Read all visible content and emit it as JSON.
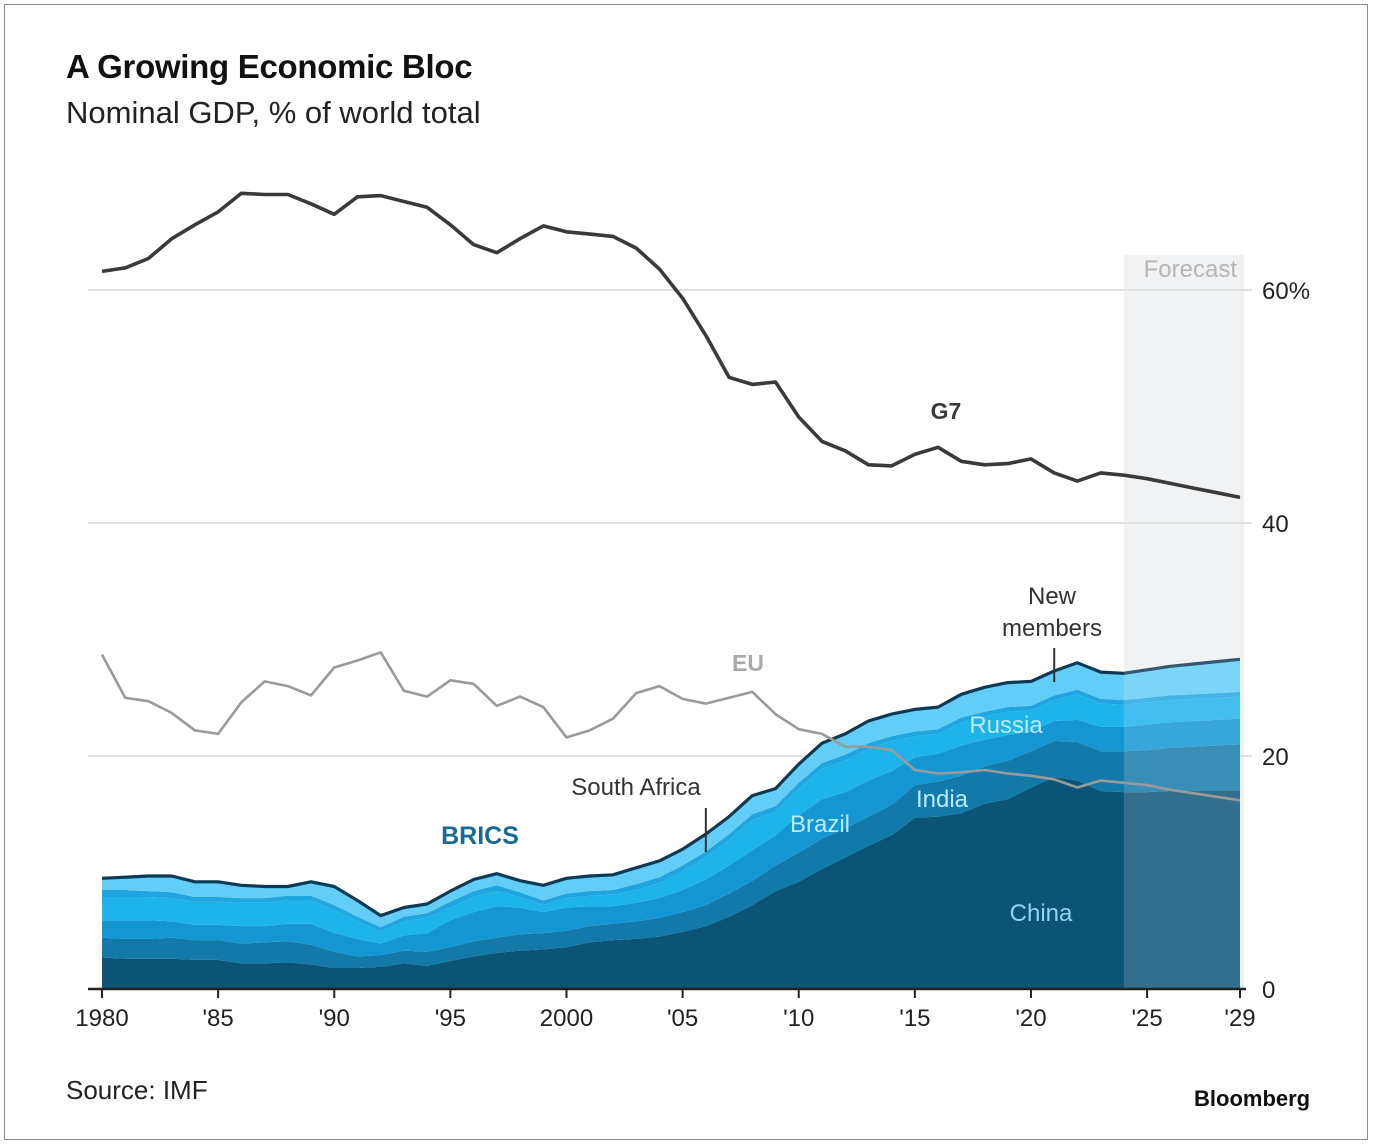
{
  "title": "A Growing Economic Bloc",
  "subtitle": "Nominal GDP, % of world total",
  "source": "Source: IMF",
  "brand": "Bloomberg",
  "colors": {
    "g7": "#3a3a3a",
    "eu": "#9a9a9a",
    "china": "#0b5478",
    "india": "#1279a8",
    "brazil": "#1496d2",
    "russia": "#1fb3ec",
    "south_africa": "#1fa6e0",
    "new_members": "#62cdf7",
    "brics_outline": "#0b3a56",
    "brics_label": "#1a6a96",
    "forecast_shade": "#eef0f2",
    "gridline": "#d6d6d6"
  },
  "chart_data": {
    "type": "area",
    "title": "A Growing Economic Bloc",
    "subtitle": "Nominal GDP, % of world total",
    "x": [
      1980,
      1981,
      1982,
      1983,
      1984,
      1985,
      1986,
      1987,
      1988,
      1989,
      1990,
      1991,
      1992,
      1993,
      1994,
      1995,
      1996,
      1997,
      1998,
      1999,
      2000,
      2001,
      2002,
      2003,
      2004,
      2005,
      2006,
      2007,
      2008,
      2009,
      2010,
      2011,
      2012,
      2013,
      2014,
      2015,
      2016,
      2017,
      2018,
      2019,
      2020,
      2021,
      2022,
      2023,
      2024,
      2025,
      2026,
      2027,
      2028,
      2029
    ],
    "x_ticks": [
      1980,
      1985,
      1990,
      1995,
      2000,
      2005,
      2010,
      2015,
      2020,
      2025,
      2029
    ],
    "x_tick_labels": [
      "1980",
      "'85",
      "'90",
      "'95",
      "2000",
      "'05",
      "'10",
      "'15",
      "'20",
      "'25",
      "'29"
    ],
    "ylim": [
      0,
      65
    ],
    "y_ticks": [
      0,
      20,
      40,
      60
    ],
    "y_tick_labels": [
      "0",
      "20",
      "40",
      "60%"
    ],
    "forecast_start": 2024,
    "forecast_label": "Forecast",
    "lines": [
      {
        "name": "G7",
        "label": "G7",
        "values": [
          61.6,
          61.9,
          62.7,
          64.4,
          65.6,
          66.7,
          68.3,
          68.2,
          68.2,
          67.4,
          66.5,
          68.0,
          68.1,
          67.6,
          67.1,
          65.6,
          63.9,
          63.2,
          64.4,
          65.5,
          65.0,
          64.8,
          64.6,
          63.6,
          61.8,
          59.3,
          56.1,
          52.5,
          51.9,
          52.1,
          49.1,
          47.0,
          46.2,
          45.0,
          44.9,
          45.9,
          46.5,
          45.3,
          45.0,
          45.1,
          45.5,
          44.3,
          43.6,
          44.3,
          44.1,
          43.8,
          43.4,
          43.0,
          42.6,
          42.2
        ]
      },
      {
        "name": "EU",
        "label": "EU",
        "values": [
          28.7,
          25.0,
          24.7,
          23.7,
          22.2,
          21.9,
          24.6,
          26.4,
          26.0,
          25.2,
          27.6,
          28.2,
          28.9,
          25.6,
          25.1,
          26.5,
          26.2,
          24.3,
          25.1,
          24.2,
          21.6,
          22.2,
          23.2,
          25.4,
          26.0,
          24.9,
          24.5,
          25.0,
          25.5,
          23.6,
          22.3,
          21.9,
          20.8,
          20.8,
          20.5,
          18.8,
          18.5,
          18.6,
          18.8,
          18.5,
          18.3,
          18.0,
          17.3,
          17.9,
          17.7,
          17.5,
          17.1,
          16.8,
          16.5,
          16.2
        ]
      }
    ],
    "stacked_series": [
      {
        "name": "China",
        "label": "China",
        "values": [
          2.7,
          2.6,
          2.6,
          2.6,
          2.5,
          2.5,
          2.2,
          2.2,
          2.3,
          2.1,
          1.8,
          1.8,
          1.9,
          2.2,
          2.0,
          2.4,
          2.8,
          3.1,
          3.3,
          3.4,
          3.6,
          4.0,
          4.2,
          4.3,
          4.5,
          4.9,
          5.4,
          6.2,
          7.2,
          8.4,
          9.2,
          10.3,
          11.3,
          12.3,
          13.2,
          14.7,
          14.8,
          15.1,
          15.9,
          16.3,
          17.3,
          18.2,
          17.9,
          17.0,
          16.9,
          16.9,
          17.0,
          17.0,
          17.0,
          17.0
        ]
      },
      {
        "name": "India",
        "label": "India",
        "values": [
          1.7,
          1.7,
          1.7,
          1.8,
          1.7,
          1.7,
          1.7,
          1.8,
          1.8,
          1.7,
          1.4,
          1.0,
          1.0,
          1.1,
          1.2,
          1.2,
          1.3,
          1.3,
          1.4,
          1.4,
          1.4,
          1.4,
          1.4,
          1.5,
          1.6,
          1.7,
          1.8,
          2.0,
          2.1,
          2.2,
          2.5,
          2.6,
          2.5,
          2.5,
          2.6,
          2.8,
          3.0,
          3.2,
          3.2,
          3.3,
          3.1,
          3.1,
          3.3,
          3.4,
          3.5,
          3.6,
          3.7,
          3.8,
          3.9,
          4.0
        ]
      },
      {
        "name": "Brazil",
        "label": "Brazil",
        "values": [
          1.5,
          1.6,
          1.6,
          1.4,
          1.3,
          1.3,
          1.5,
          1.4,
          1.5,
          1.8,
          1.6,
          1.5,
          1.0,
          1.3,
          1.6,
          2.3,
          2.5,
          2.7,
          2.3,
          1.8,
          2.0,
          1.7,
          1.5,
          1.6,
          1.7,
          1.9,
          2.2,
          2.4,
          2.6,
          2.6,
          3.2,
          3.4,
          3.1,
          3.1,
          2.9,
          2.4,
          2.4,
          2.6,
          2.3,
          2.2,
          1.7,
          1.7,
          1.9,
          2.1,
          2.1,
          2.2,
          2.2,
          2.2,
          2.2,
          2.2
        ]
      },
      {
        "name": "Russia",
        "label": "Russia",
        "values": [
          2.0,
          2.0,
          2.0,
          2.0,
          2.0,
          2.0,
          2.0,
          2.0,
          2.0,
          2.0,
          2.0,
          1.5,
          1.0,
          1.2,
          1.3,
          1.1,
          1.3,
          1.3,
          0.9,
          0.6,
          0.8,
          0.9,
          1.0,
          1.1,
          1.3,
          1.6,
          1.9,
          2.2,
          2.6,
          2.0,
          2.3,
          2.6,
          2.7,
          2.7,
          2.6,
          1.8,
          1.7,
          2.0,
          2.0,
          2.0,
          1.8,
          1.8,
          2.2,
          2.0,
          1.9,
          1.9,
          1.9,
          1.9,
          1.9,
          1.9
        ]
      },
      {
        "name": "South Africa",
        "label": "South Africa",
        "values": [
          0.6,
          0.6,
          0.5,
          0.5,
          0.4,
          0.4,
          0.4,
          0.4,
          0.4,
          0.4,
          0.4,
          0.4,
          0.4,
          0.4,
          0.4,
          0.5,
          0.5,
          0.5,
          0.4,
          0.4,
          0.4,
          0.4,
          0.4,
          0.5,
          0.5,
          0.5,
          0.5,
          0.5,
          0.5,
          0.5,
          0.5,
          0.5,
          0.5,
          0.5,
          0.4,
          0.4,
          0.4,
          0.4,
          0.4,
          0.4,
          0.4,
          0.4,
          0.4,
          0.4,
          0.4,
          0.4,
          0.4,
          0.4,
          0.4,
          0.4
        ]
      },
      {
        "name": "New members",
        "values": [
          1.0,
          1.1,
          1.3,
          1.4,
          1.3,
          1.3,
          1.1,
          1.0,
          0.8,
          1.2,
          1.6,
          1.4,
          1.0,
          0.8,
          0.8,
          0.9,
          1.0,
          1.0,
          1.0,
          1.3,
          1.3,
          1.3,
          1.3,
          1.4,
          1.4,
          1.4,
          1.5,
          1.5,
          1.6,
          1.5,
          1.6,
          1.7,
          1.8,
          1.9,
          1.9,
          1.9,
          1.9,
          2.0,
          2.1,
          2.1,
          2.1,
          2.1,
          2.3,
          2.3,
          2.3,
          2.4,
          2.5,
          2.6,
          2.7,
          2.8
        ]
      }
    ],
    "brics_total_label": "BRICS",
    "annotations": [
      {
        "text_lines": [
          "New",
          "members"
        ],
        "year": 2021
      },
      {
        "text_lines": [
          "South Africa"
        ],
        "year": 2006
      }
    ]
  }
}
